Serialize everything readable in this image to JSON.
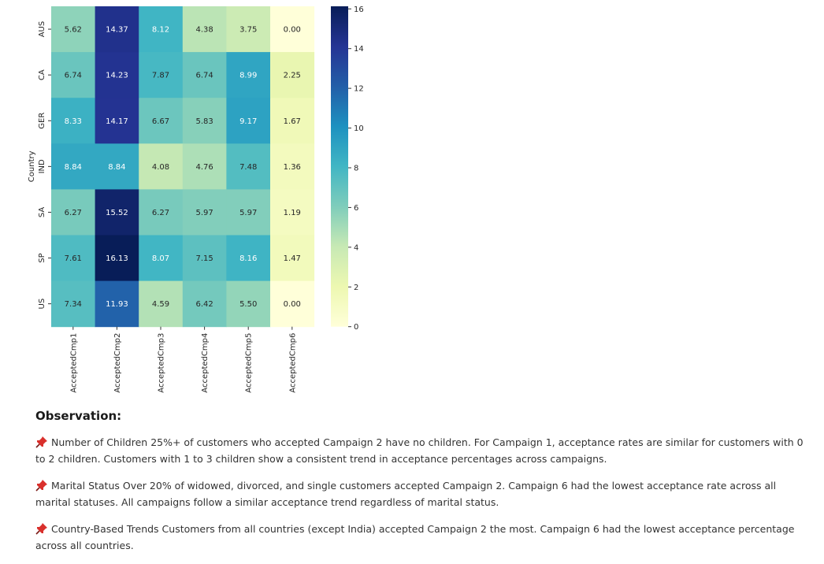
{
  "chart_data": {
    "type": "heatmap",
    "title": "",
    "xlabel": "",
    "ylabel": "Country",
    "rows": [
      "AUS",
      "CA",
      "GER",
      "IND",
      "SA",
      "SP",
      "US"
    ],
    "columns": [
      "AcceptedCmp1",
      "AcceptedCmp2",
      "AcceptedCmp3",
      "AcceptedCmp4",
      "AcceptedCmp5",
      "AcceptedCmp6"
    ],
    "values": [
      [
        5.62,
        14.37,
        8.12,
        4.38,
        3.75,
        0.0
      ],
      [
        6.74,
        14.23,
        7.87,
        6.74,
        8.99,
        2.25
      ],
      [
        8.33,
        14.17,
        6.67,
        5.83,
        9.17,
        1.67
      ],
      [
        8.84,
        8.84,
        4.08,
        4.76,
        7.48,
        1.36
      ],
      [
        6.27,
        15.52,
        6.27,
        5.97,
        5.97,
        1.19
      ],
      [
        7.61,
        16.13,
        8.07,
        7.15,
        8.16,
        1.47
      ],
      [
        7.34,
        11.93,
        4.59,
        6.42,
        5.5,
        0.0
      ]
    ],
    "colormap": "YlGnBu",
    "colorbar_range": [
      0,
      16.13
    ],
    "colorbar_ticks": [
      0,
      2,
      4,
      6,
      8,
      10,
      12,
      14,
      16
    ],
    "annotations": true
  },
  "observation": {
    "title": "Observation:",
    "pin_icon": "pushpin-icon",
    "items": [
      "Number of Children 25%+ of customers who accepted Campaign 2 have no children. For Campaign 1, acceptance rates are similar for customers with 0 to 2 children. Customers with 1 to 3 children show a consistent trend in acceptance percentages across campaigns.",
      "Marital Status Over 20% of widowed, divorced, and single customers accepted Campaign 2. Campaign 6 had the lowest acceptance rate across all marital statuses. All campaigns follow a similar acceptance trend regardless of marital status.",
      "Country-Based Trends Customers from all countries (except India) accepted Campaign 2 the most. Campaign 6 had the lowest acceptance percentage across all countries."
    ]
  }
}
